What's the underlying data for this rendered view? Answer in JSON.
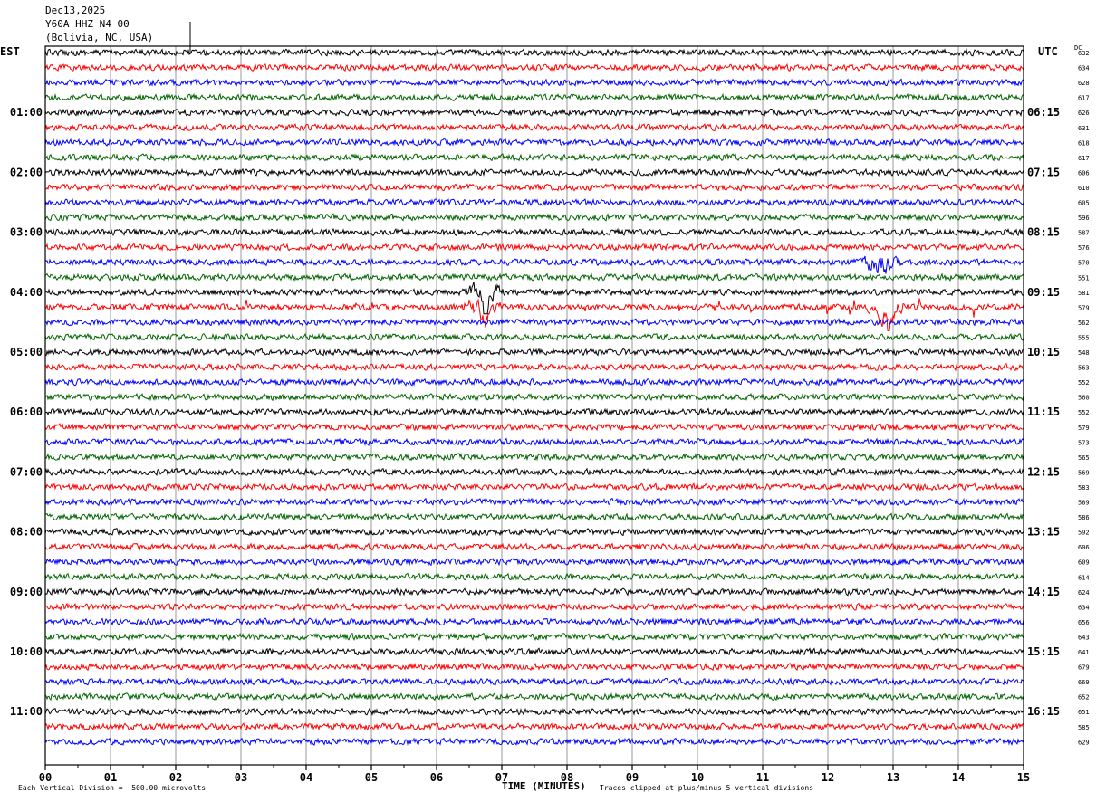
{
  "header": {
    "date": "Dec13,2025",
    "station": "Y60A HHZ N4 00",
    "location": "(Bolivia, NC, USA)"
  },
  "timezones": {
    "left": "EST",
    "right": "UTC",
    "dc_header": "DC"
  },
  "footer": {
    "scale": "Each Vertical Division =  500.00 microvolts",
    "xlabel": "TIME (MINUTES)",
    "clip_note": "Traces clipped at plus/minus 5 vertical divisions"
  },
  "chart_data": {
    "type": "line",
    "title": "Dec13,2025 Y60A HHZ N4 00 (Bolivia, NC, USA)",
    "xlabel": "TIME (MINUTES)",
    "xlim": [
      0,
      15
    ],
    "x_ticks": [
      "00",
      "01",
      "02",
      "03",
      "04",
      "05",
      "06",
      "07",
      "08",
      "09",
      "10",
      "11",
      "12",
      "13",
      "14",
      "15"
    ],
    "grid": true,
    "trace_colors": [
      "#000000",
      "#ff0000",
      "#0000ff",
      "#006400"
    ],
    "left_hour_labels": [
      "01:00",
      "02:00",
      "03:00",
      "04:00",
      "05:00",
      "06:00",
      "07:00",
      "08:00",
      "09:00",
      "10:00",
      "11:00"
    ],
    "right_hour_labels": [
      "06:15",
      "07:15",
      "08:15",
      "09:15",
      "10:15",
      "11:15",
      "12:15",
      "13:15",
      "14:15",
      "15:15",
      "16:15"
    ],
    "dc_offsets": [
      632,
      634,
      628,
      617,
      626,
      631,
      618,
      617,
      606,
      610,
      605,
      596,
      587,
      576,
      570,
      551,
      581,
      579,
      562,
      555,
      548,
      563,
      552,
      560,
      552,
      579,
      573,
      565,
      569,
      583,
      589,
      586,
      592,
      606,
      609,
      614,
      624,
      634,
      656,
      643,
      641,
      679,
      669,
      652,
      651,
      585,
      629
    ],
    "events": [
      {
        "trace": 16,
        "minute": 6.75,
        "note": "large spike"
      },
      {
        "trace": 17,
        "minute": 6.7,
        "note": "burst"
      },
      {
        "trace": 17,
        "minute": 12.9,
        "note": "burst"
      },
      {
        "trace": 14,
        "minute": 12.8,
        "note": "spike"
      }
    ]
  }
}
